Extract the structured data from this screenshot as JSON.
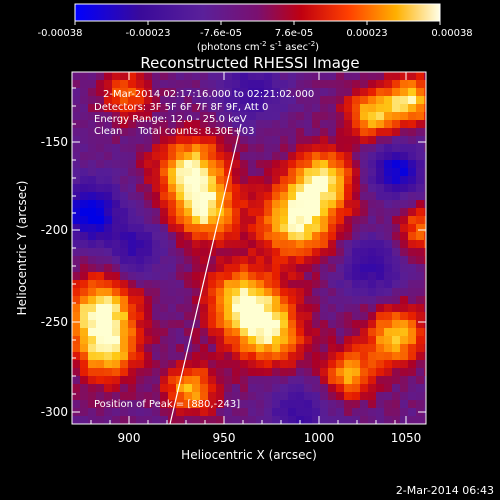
{
  "colorbar": {
    "tick_labels": [
      "-0.00038",
      "-0.00023",
      "-7.6e-05",
      "7.6e-05",
      "0.00023",
      "0.00038"
    ],
    "units_label": "(photons cm",
    "units_exp1": "-2",
    "units_mid": " s",
    "units_exp2": "-1",
    "units_tail": " asec",
    "units_exp3": "-2",
    "units_close": ")"
  },
  "title": "Reconstructed RHESSI Image",
  "info": {
    "time_range": "2-Mar-2014 02:17:16.000 to 02:21:02.000",
    "detectors": "Detectors: 3F 5F 6F 7F 8F 9F, Att 0",
    "energy": "Energy Range: 12.0 - 25.0 keV",
    "clean": "Clean     Total counts: 8.30E+03",
    "peak": "Position of Peak = [880,-243]"
  },
  "axes": {
    "xlabel": "Heliocentric X (arcsec)",
    "ylabel": "Heliocentric Y (arcsec)",
    "x_ticks": [
      "900",
      "950",
      "1000",
      "1050"
    ],
    "y_ticks": [
      "-150",
      "-200",
      "-250",
      "-300"
    ]
  },
  "footer_date": "2-Mar-2014 06:43",
  "colors": {
    "colormap": [
      "#0000ff",
      "#4a0a9a",
      "#5a209a",
      "#8a1060",
      "#c00000",
      "#ff5000",
      "#ffb000",
      "#ffffd0"
    ]
  }
}
